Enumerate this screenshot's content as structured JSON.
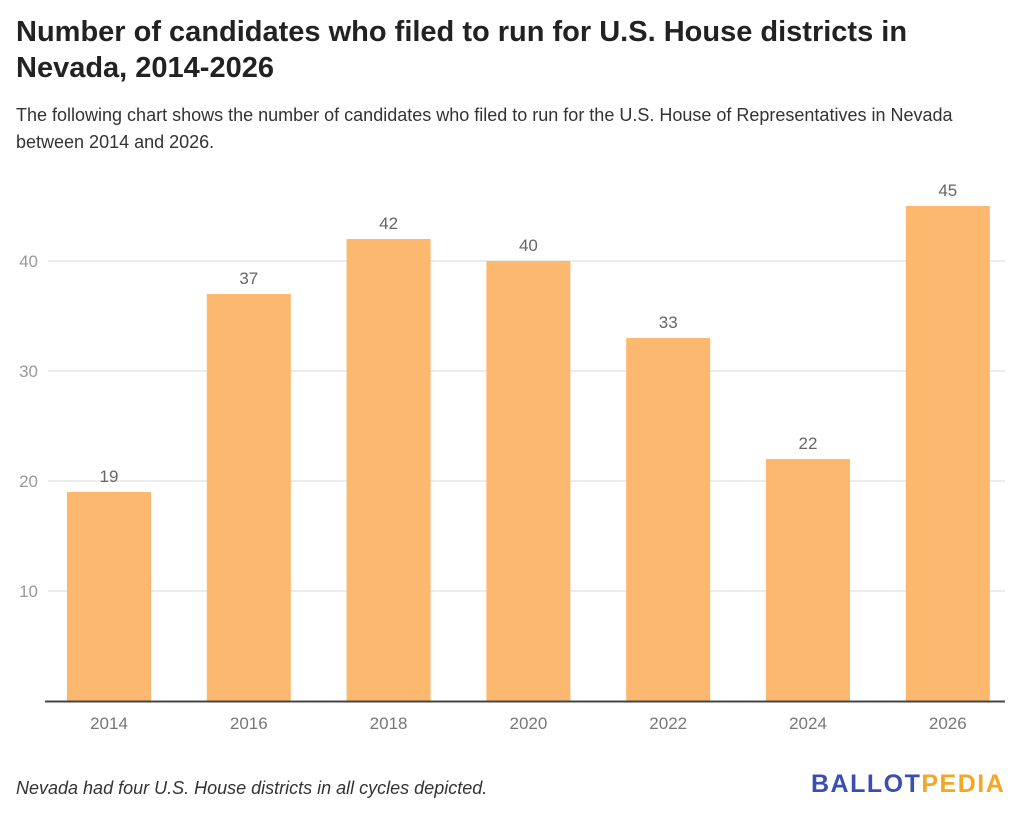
{
  "title": "Number of candidates who filed to run for U.S. House districts in Nevada, 2014-2026",
  "subtitle": "The following chart shows the number of candidates who filed to run for the U.S. House of Representatives in Nevada between 2014 and 2026.",
  "note": "Nevada had four U.S. House districts in all cycles depicted.",
  "logo": {
    "part1": "BALLOT",
    "part2": "PEDIA"
  },
  "colors": {
    "bar": "#FDB86F",
    "grid": "#e5e5e5",
    "axis": "#444444"
  },
  "chart_data": {
    "type": "bar",
    "title": "Number of candidates who filed to run for U.S. House districts in Nevada, 2014-2026",
    "xlabel": "",
    "ylabel": "",
    "categories": [
      "2014",
      "2016",
      "2018",
      "2020",
      "2022",
      "2024",
      "2026"
    ],
    "values": [
      19,
      37,
      42,
      40,
      33,
      22,
      45
    ],
    "ylim": [
      0,
      45
    ],
    "yticks": [
      10,
      20,
      30,
      40
    ],
    "grid": true,
    "data_labels": true
  }
}
